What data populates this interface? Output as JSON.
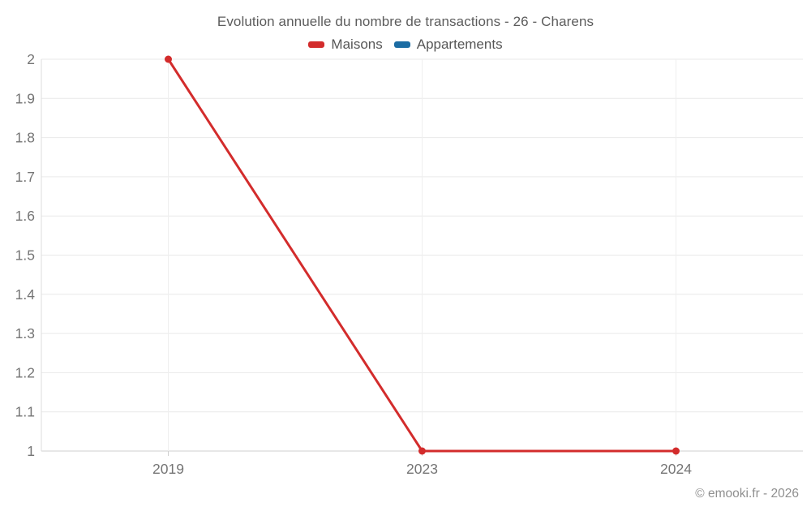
{
  "title": "Evolution annuelle du nombre de transactions - 26 - Charens",
  "footer": "© emooki.fr - 2026",
  "chart_data": {
    "type": "line",
    "title": "Evolution annuelle du nombre de transactions - 26 - Charens",
    "categories": [
      "2019",
      "2023",
      "2024"
    ],
    "series": [
      {
        "name": "Maisons",
        "color": "#d32c2c",
        "values": [
          2,
          1,
          1
        ]
      },
      {
        "name": "Appartements",
        "color": "#1b6ca3",
        "values": []
      }
    ],
    "xlabel": "",
    "ylabel": "",
    "ylim": [
      1,
      2
    ],
    "yticks": [
      1,
      1.1,
      1.2,
      1.3,
      1.4,
      1.5,
      1.6,
      1.7,
      1.8,
      1.9,
      2
    ],
    "ytick_labels": [
      "1",
      "1.1",
      "1.2",
      "1.3",
      "1.4",
      "1.5",
      "1.6",
      "1.7",
      "1.8",
      "1.9",
      "2"
    ],
    "grid": true,
    "legend_position": "top",
    "marker": "circle"
  }
}
